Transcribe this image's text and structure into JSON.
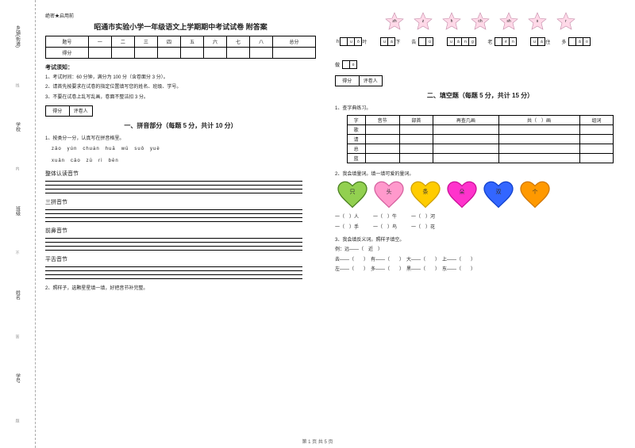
{
  "secret": "绝密★启用前",
  "title": "昭通市实验小学一年级语文上学期期中考试试卷 附答案",
  "binding": [
    "学号",
    "姓名",
    "班级",
    "学校",
    "乡镇(街道)"
  ],
  "bind_notes": [
    "答",
    "题",
    "不",
    "密",
    "内",
    "线",
    "封"
  ],
  "score_headers": [
    "题号",
    "一",
    "二",
    "三",
    "四",
    "五",
    "六",
    "七",
    "八",
    "总分"
  ],
  "score_row_label": "得分",
  "notice_title": "考试须知：",
  "notices": [
    "1、考试时间：60 分钟，满分为 100 分（含卷面分 3 分）。",
    "2、请首先按要求在试卷的指定位置填写您的姓名、班级、学号。",
    "3、不要在试卷上乱写乱画，卷面不整洁扣 3 分。"
  ],
  "score_box": [
    "得分",
    "评卷人"
  ],
  "section1_title": "一、拼音部分（每题 5 分，共计 10 分）",
  "q1_1": "1、按类分一分，认真写在拼音格里。",
  "pinyins_row1": "zǎo　yún　chuán　huā　wū　suǒ　yuè",
  "pinyins_row2": "xuǎn　cǎo　zū　rì　bēn",
  "sub1": "整体认读音节",
  "sub2": "三拼音节",
  "sub3": "前鼻音节",
  "sub4": "平舌音节",
  "q1_2": "2、照样子，选颗星星填一填，好把音节补完整。",
  "stars": [
    "zh",
    "z",
    "h",
    "ch",
    "sh",
    "s",
    "r"
  ],
  "star_fill_color": "#ffd9e8",
  "star_stroke": "#c48aa8",
  "grid_items": [
    {
      "pre": "",
      "char": "h",
      "cells": [
        "",
        "u",
        "ǒ"
      ],
      "post": "叶"
    },
    {
      "pre": "",
      "char": "",
      "cells": [
        "u",
        "à"
      ],
      "post": "下"
    },
    {
      "pre": "告",
      "char": "",
      "cells": [
        "",
        "ù"
      ],
      "post": ""
    },
    {
      "pre": "",
      "char": "",
      "cells": [
        "u",
        "ā",
        "n",
        "g"
      ],
      "post": ""
    },
    {
      "pre": "老",
      "char": "",
      "cells": [
        "",
        "é",
        "n"
      ],
      "post": ""
    },
    {
      "pre": "",
      "char": "",
      "cells": [
        "u",
        "á"
      ],
      "post": "住"
    },
    {
      "pre": "多",
      "char": "",
      "cells": [
        "",
        "ǎ",
        "o"
      ],
      "post": ""
    },
    {
      "pre": "做",
      "char": "",
      "cells": [
        "",
        "o"
      ],
      "post": ""
    }
  ],
  "section2_title": "二、填空题（每题 5 分，共计 15 分）",
  "q2_1": "1、查字典练习。",
  "char_headers": [
    "字",
    "音节",
    "部首",
    "再查几画",
    "共（　）画",
    "组词"
  ],
  "char_rows": [
    "歌",
    "请",
    "总",
    "蓝"
  ],
  "q2_2": "2、我会填量词。填一填可爱的量词。",
  "hearts": [
    {
      "label": "只",
      "fill": "#92d050",
      "stroke": "#4a8020"
    },
    {
      "label": "头",
      "fill": "#ff99cc",
      "stroke": "#d662a0"
    },
    {
      "label": "条",
      "fill": "#ffcc00",
      "stroke": "#d0a000"
    },
    {
      "label": "朵",
      "fill": "#ff33cc",
      "stroke": "#cc1099"
    },
    {
      "label": "双",
      "fill": "#3366ff",
      "stroke": "#1040cc"
    },
    {
      "label": "个",
      "fill": "#ff9900",
      "stroke": "#d07700"
    }
  ],
  "fill_rows": [
    "一（　）人　　　一（　）牛　　　一（　）河",
    "一（　）手　　　一（　）鸟　　　一（　）花"
  ],
  "q2_3": "3、我会填反义词。照样子填空。",
  "example": "例：远——（　近　）",
  "opp1": "去——（　　）　有——（　　）　大——（　　）　上——（　　）",
  "opp2": "左——（　　）　多——（　　）　黑——（　　）　东——（　　）",
  "footer": "第 1 页 共 5 页"
}
